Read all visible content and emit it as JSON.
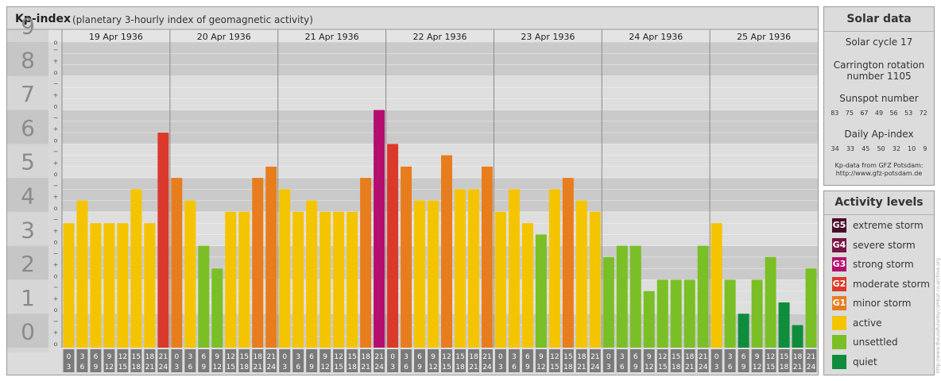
{
  "header": {
    "title": "Kp-index",
    "subtitle": "(planetary 3-hourly index of geomagnetic activity)"
  },
  "chart_data": {
    "type": "bar",
    "title": "Kp-index",
    "subtitle": "(planetary 3-hourly index of geomagnetic activity)",
    "ylim": [
      0,
      9
    ],
    "y_ticks": [
      "0",
      "1",
      "2",
      "3",
      "4",
      "5",
      "6",
      "7",
      "8",
      "9"
    ],
    "thirds_labels": [
      "o",
      "+",
      "−"
    ],
    "days": [
      "19 Apr 1936",
      "20 Apr 1936",
      "21 Apr 1936",
      "22 Apr 1936",
      "23 Apr 1936",
      "24 Apr 1936",
      "25 Apr 1936"
    ],
    "interval_top": [
      "0",
      "3",
      "6",
      "9",
      "12",
      "15",
      "18",
      "21"
    ],
    "interval_bottom": [
      "3",
      "6",
      "9",
      "12",
      "15",
      "18",
      "21",
      "24"
    ],
    "values": [
      [
        3.667,
        4.333,
        3.667,
        3.667,
        3.667,
        4.667,
        3.667,
        6.333
      ],
      [
        5.0,
        4.333,
        3.0,
        2.333,
        4.0,
        4.0,
        5.0,
        5.333
      ],
      [
        4.667,
        4.0,
        4.333,
        4.0,
        4.0,
        4.0,
        5.0,
        7.0
      ],
      [
        6.0,
        5.333,
        4.333,
        4.333,
        5.667,
        4.667,
        4.667,
        5.333
      ],
      [
        4.0,
        4.667,
        3.667,
        3.333,
        4.667,
        5.0,
        4.333,
        4.0
      ],
      [
        2.667,
        3.0,
        3.0,
        1.667,
        2.0,
        2.0,
        2.0,
        3.0
      ],
      [
        3.667,
        2.0,
        1.0,
        2.0,
        2.667,
        1.333,
        0.667,
        2.333
      ]
    ],
    "grid": true
  },
  "solar": {
    "title": "Solar data",
    "cycle": "Solar cycle 17",
    "carrington_1": "Carrington rotation",
    "carrington_2": "number 1105",
    "sunspot_title": "Sunspot number",
    "sunspot": [
      "83",
      "75",
      "67",
      "49",
      "56",
      "53",
      "72"
    ],
    "ap_title": "Daily Ap-index",
    "ap": [
      "34",
      "33",
      "45",
      "50",
      "32",
      "10",
      "9"
    ],
    "source_1": "Kp-data from GFZ Potsdam:",
    "source_2": "http://www.gfz-potsdam.de"
  },
  "activity": {
    "title": "Activity levels",
    "items": [
      {
        "code": "G5",
        "label": "extreme storm",
        "color": "#4a0b2a"
      },
      {
        "code": "G4",
        "label": "severe storm",
        "color": "#7a1446"
      },
      {
        "code": "G3",
        "label": "strong storm",
        "color": "#b40e6e"
      },
      {
        "code": "G2",
        "label": "moderate storm",
        "color": "#db3a2a"
      },
      {
        "code": "G1",
        "label": "minor storm",
        "color": "#e87d1e"
      },
      {
        "code": "",
        "label": "active",
        "color": "#f5c400"
      },
      {
        "code": "",
        "label": "unsettled",
        "color": "#7abf25"
      },
      {
        "code": "",
        "label": "quiet",
        "color": "#0f8c3c"
      }
    ]
  },
  "watermark": "http://www.theusefularmycombat.co.archive.org"
}
